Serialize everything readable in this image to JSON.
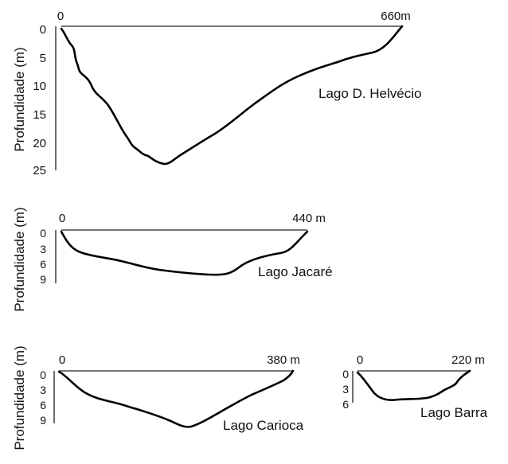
{
  "y_axis_label": "Profundidade (m)",
  "lakes": [
    {
      "name": "Lago D. Helvécio",
      "width_start": "0",
      "width_end": "660m",
      "depth_ticks": [
        "0",
        "5",
        "10",
        "15",
        "20",
        "25"
      ]
    },
    {
      "name": "Lago Jacaré",
      "width_start": "0",
      "width_end": "440 m",
      "depth_ticks": [
        "0",
        "3",
        "6",
        "9"
      ]
    },
    {
      "name": "Lago Carioca",
      "width_start": "0",
      "width_end": "380 m",
      "depth_ticks": [
        "0",
        "3",
        "6",
        "9"
      ]
    },
    {
      "name": "Lago Barra",
      "width_start": "0",
      "width_end": "220 m",
      "depth_ticks": [
        "0",
        "3",
        "6"
      ]
    }
  ]
}
